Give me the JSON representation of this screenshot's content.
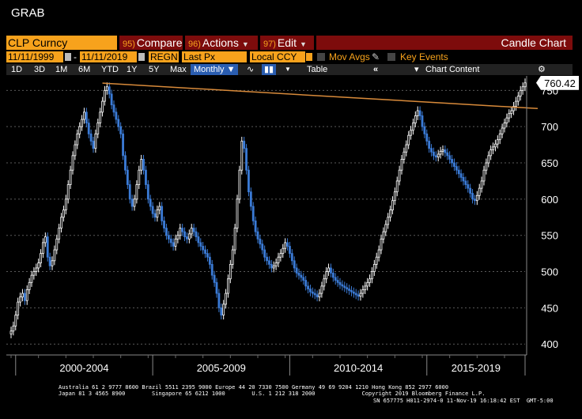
{
  "header": {
    "title": "GRAB"
  },
  "toolbar": {
    "ticker": "CLP Curncy",
    "compare": {
      "num": "95)",
      "label": "Compare"
    },
    "actions": {
      "num": "96)",
      "label": "Actions"
    },
    "edit": {
      "num": "97)",
      "label": "Edit"
    },
    "chart_type": "Candle Chart"
  },
  "controls": {
    "start_date": "11/11/1999",
    "end_date": "11/11/2019",
    "regn": "REGN",
    "field": "Last Px",
    "currency": "Local CCY",
    "mov_avgs": "Mov Avgs",
    "key_events": "Key Events"
  },
  "range_bar": {
    "periods": [
      "1D",
      "3D",
      "1M",
      "6M",
      "YTD",
      "1Y",
      "5Y",
      "Max"
    ],
    "frequency": "Monthly",
    "table": "Table",
    "chart_content": "Chart Content"
  },
  "footer": {
    "line1": "Australia 61 2 9777 8600 Brazil 5511 2395 9000 Europe 44 20 7330 7500 Germany 49 69 9204 1210 Hong Kong 852 2977 6000",
    "line2": "Japan 81 3 4565 8900        Singapore 65 6212 1000        U.S. 1 212 318 2000              Copyright 2019 Bloomberg Finance L.P.",
    "line3": "SN 657775 H011-2974-0 11-Nov-19 16:18:42 EST  GMT-5:00"
  },
  "colors": {
    "up": "#ffffff",
    "down": "#3b7bd6",
    "trendline": "#d88a3a",
    "orange": "#f7a21c",
    "red": "#7d0c0c"
  },
  "chart_data": {
    "type": "candlestick",
    "frequency": "monthly",
    "x_period_labels": [
      "2000-2004",
      "2005-2009",
      "2010-2014",
      "2015-2019"
    ],
    "y_ticks": [
      400,
      450,
      500,
      550,
      600,
      650,
      700,
      750
    ],
    "ylim": [
      385,
      770
    ],
    "last_value_label": "760.42",
    "series": [
      {
        "values": [
          418,
          425,
          440,
          458,
          465,
          470,
          460,
          475,
          485,
          495,
          500,
          505,
          512,
          525,
          540,
          548,
          520,
          508,
          515,
          530,
          545,
          560,
          575,
          585,
          600,
          620,
          640,
          660,
          675,
          690,
          700,
          710,
          720,
          705,
          690,
          680,
          670,
          690,
          705,
          720,
          735,
          750,
          755,
          745,
          730,
          720,
          710,
          700,
          690,
          660,
          640,
          620,
          600,
          590,
          600,
          620,
          640,
          655,
          640,
          620,
          600,
          590,
          580,
          575,
          585,
          590,
          570,
          560,
          550,
          545,
          540,
          535,
          545,
          550,
          560,
          555,
          548,
          545,
          552,
          560,
          555,
          548,
          540,
          535,
          530,
          525,
          520,
          510,
          495,
          485,
          470,
          450,
          440,
          455,
          470,
          490,
          510,
          530,
          560,
          600,
          640,
          680,
          670,
          640,
          610,
          590,
          570,
          555,
          545,
          538,
          530,
          520,
          515,
          510,
          505,
          508,
          512,
          520,
          525,
          532,
          540,
          535,
          525,
          515,
          505,
          498,
          495,
          492,
          488,
          480,
          476,
          472,
          470,
          468,
          465,
          470,
          480,
          490,
          500,
          505,
          498,
          492,
          488,
          485,
          482,
          480,
          478,
          476,
          474,
          472,
          470,
          468,
          466,
          470,
          475,
          480,
          485,
          490,
          500,
          510,
          520,
          530,
          545,
          555,
          565,
          575,
          585,
          598,
          610,
          625,
          640,
          655,
          665,
          675,
          688,
          695,
          705,
          715,
          722,
          715,
          700,
          690,
          680,
          670,
          665,
          660,
          658,
          662,
          666,
          668,
          664,
          660,
          655,
          650,
          645,
          640,
          635,
          630,
          625,
          620,
          615,
          608,
          600,
          598,
          605,
          615,
          625,
          640,
          650,
          660,
          668,
          672,
          676,
          682,
          690,
          698,
          705,
          712,
          718,
          722,
          728,
          735,
          742,
          750,
          755,
          760.42
        ]
      }
    ],
    "trendline": {
      "from": {
        "x": "2003-03",
        "y": 760
      },
      "to": {
        "x": "2019-11",
        "y": 725
      }
    }
  }
}
